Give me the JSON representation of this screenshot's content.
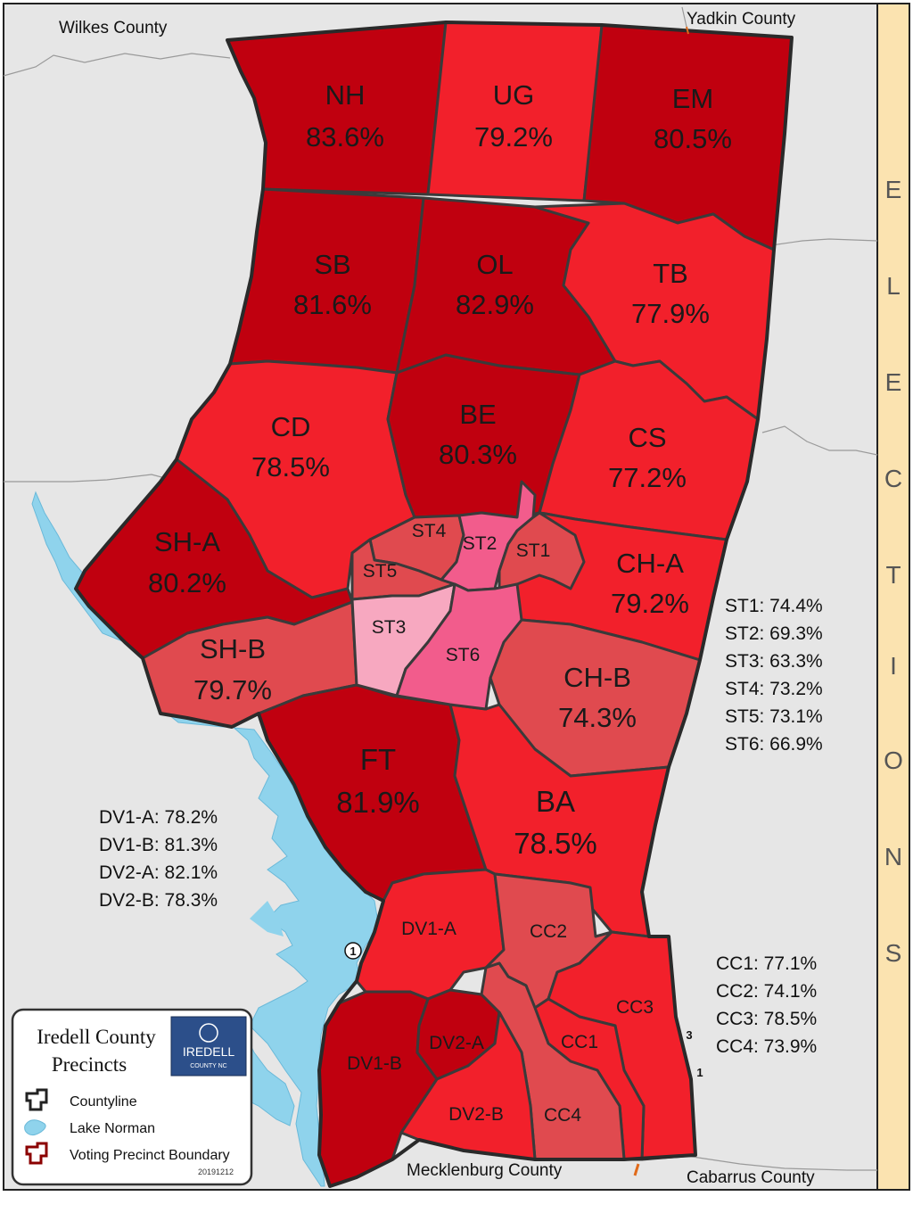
{
  "map": {
    "title_line1": "Iredell County",
    "title_line2": "Precincts",
    "logo_text": "IREDELL",
    "logo_subtext": "COUNTY NC",
    "date_code": "20191212",
    "sidebar_letters": [
      "E",
      "L",
      "E",
      "C",
      "T",
      "I",
      "O",
      "N",
      "S"
    ],
    "neighbors": {
      "wilkes": "Wilkes County",
      "yadkin": "Yadkin County",
      "mecklenburg": "Mecklenburg County",
      "cabarrus": "Cabarrus County"
    },
    "road_markers": [
      "1",
      "3",
      "1"
    ],
    "legend": [
      {
        "label": "Countyline",
        "icon": "county-outline-icon"
      },
      {
        "label": "Lake Norman",
        "icon": "lake-icon"
      },
      {
        "label": "Voting Precinct Boundary",
        "icon": "precinct-outline-icon"
      }
    ],
    "precincts": [
      {
        "code": "NH",
        "pct": "83.6%"
      },
      {
        "code": "UG",
        "pct": "79.2%"
      },
      {
        "code": "EM",
        "pct": "80.5%"
      },
      {
        "code": "SB",
        "pct": "81.6%"
      },
      {
        "code": "OL",
        "pct": "82.9%"
      },
      {
        "code": "TB",
        "pct": "77.9%"
      },
      {
        "code": "CD",
        "pct": "78.5%"
      },
      {
        "code": "BE",
        "pct": "80.3%"
      },
      {
        "code": "CS",
        "pct": "77.2%"
      },
      {
        "code": "SH-A",
        "pct": "80.2%"
      },
      {
        "code": "CH-A",
        "pct": "79.2%"
      },
      {
        "code": "SH-B",
        "pct": "79.7%"
      },
      {
        "code": "CH-B",
        "pct": "74.3%"
      },
      {
        "code": "FT",
        "pct": "81.9%"
      },
      {
        "code": "BA",
        "pct": "78.5%"
      },
      {
        "code": "ST1"
      },
      {
        "code": "ST2"
      },
      {
        "code": "ST3"
      },
      {
        "code": "ST4"
      },
      {
        "code": "ST5"
      },
      {
        "code": "ST6"
      },
      {
        "code": "DV1-A"
      },
      {
        "code": "DV1-B"
      },
      {
        "code": "DV2-A"
      },
      {
        "code": "DV2-B"
      },
      {
        "code": "CC1"
      },
      {
        "code": "CC2"
      },
      {
        "code": "CC3"
      },
      {
        "code": "CC4"
      }
    ],
    "statesville_list": [
      "ST1: 74.4%",
      "ST2: 69.3%",
      "ST3: 63.3%",
      "ST4: 73.2%",
      "ST5: 73.1%",
      "ST6: 66.9%"
    ],
    "davidson_list": [
      "DV1-A: 78.2%",
      "DV1-B: 81.3%",
      "DV2-A: 82.1%",
      "DV2-B: 78.3%"
    ],
    "coddle_list": [
      "CC1: 77.1%",
      "CC2: 74.1%",
      "CC3: 78.5%",
      "CC4: 73.9%"
    ],
    "colors": {
      "dark_red": "#c0000f",
      "red": "#f2202b",
      "salmon": "#e04a4f",
      "pink": "#f25c8c",
      "light_pink": "#f7a8c0",
      "background": "#e6e6e6",
      "lake": "#8fd3ec",
      "sidebar": "#fbe3b0",
      "boundary": "#3a3a3a"
    }
  }
}
